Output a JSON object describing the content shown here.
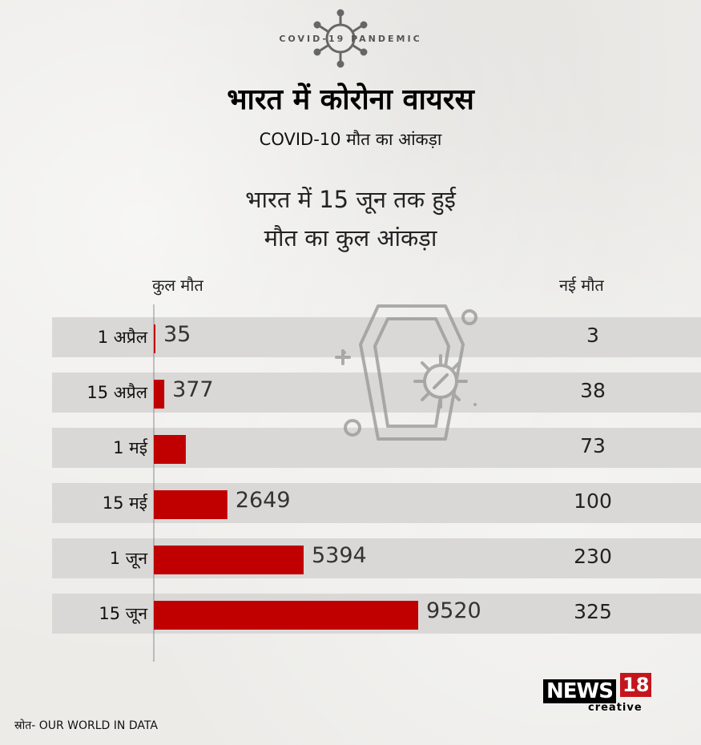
{
  "badge": "COVID-19 PANDEMIC",
  "title": "भारत में कोरोना वायरस",
  "subtitle": "COVID-10 मौत का आंकड़ा",
  "headline_line1": "भारत में 15 जून तक हुई",
  "headline_line2": "मौत का कुल आंकड़ा",
  "source": "स्रोत- OUR WORLD IN DATA",
  "logo": {
    "main": "NEWS",
    "number": "18",
    "sub": "creative"
  },
  "colors": {
    "bar": "#c00000",
    "band": "#d9d8d6",
    "accent": "#c4161c"
  },
  "icons": [
    "virus-icon",
    "coffin-icon"
  ],
  "chart_data": {
    "type": "bar",
    "orientation": "horizontal",
    "categories": [
      "1 अप्रैल",
      "15 अप्रैल",
      "1 मई",
      "15 मई",
      "1 जून",
      "15 जून"
    ],
    "series": [
      {
        "name": "कुल मौत",
        "values": [
          35,
          377,
          1152,
          2649,
          5394,
          9520
        ],
        "value_labels": [
          "35",
          "377",
          "",
          "2649",
          "5394",
          "9520"
        ]
      },
      {
        "name": "नई मौत",
        "values": [
          3,
          38,
          73,
          100,
          230,
          325
        ]
      }
    ],
    "xlim": [
      0,
      10000
    ],
    "grid": false,
    "legend": "top"
  }
}
